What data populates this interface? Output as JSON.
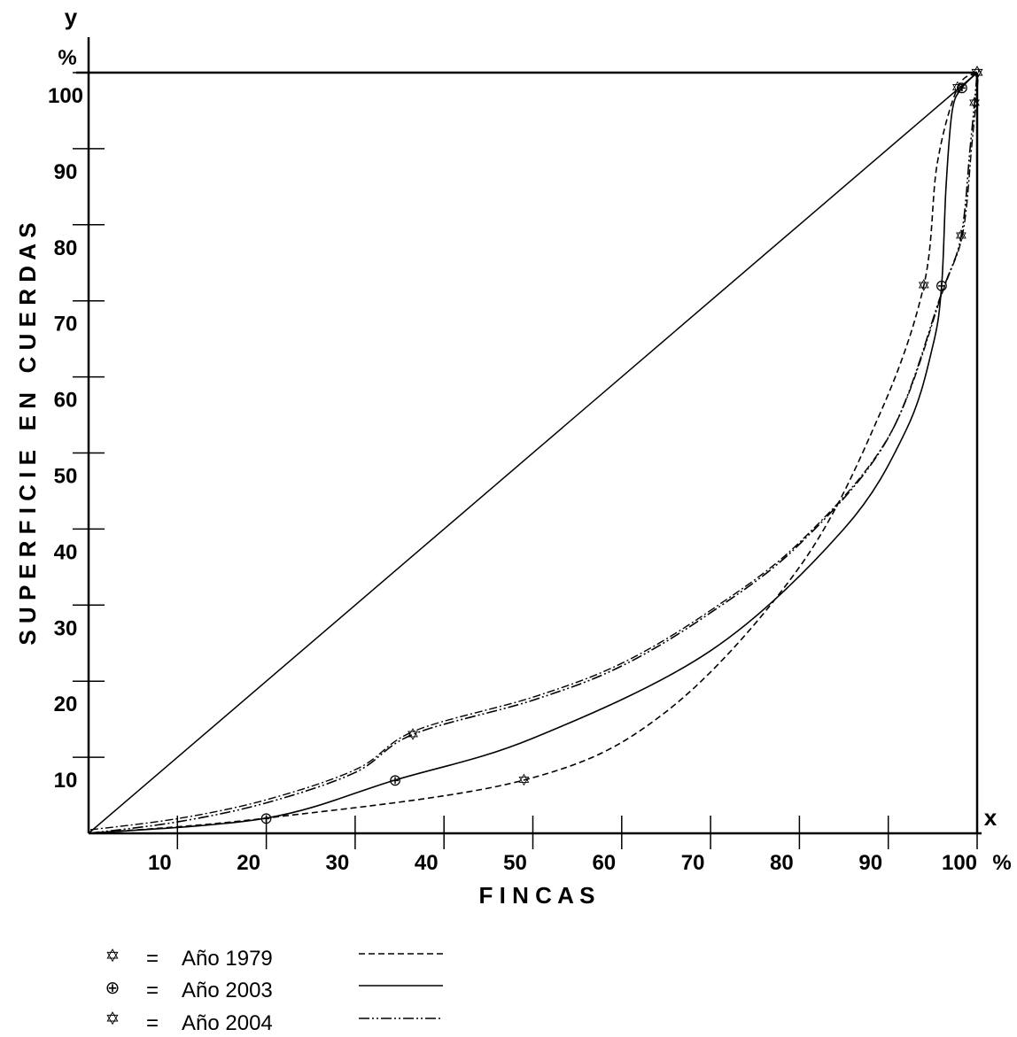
{
  "chart_data": {
    "type": "line",
    "title": "",
    "xlabel": "F I N C A S",
    "ylabel": "S U P E R F I C I E   E N   C U E R D A S",
    "x_axis_letter": "x",
    "y_axis_letter": "y",
    "x_unit": "%",
    "y_unit": "%",
    "xlim": [
      0,
      100
    ],
    "ylim": [
      0,
      100
    ],
    "x_ticks": [
      10,
      20,
      30,
      40,
      50,
      60,
      70,
      80,
      90,
      100
    ],
    "y_ticks": [
      10,
      20,
      30,
      40,
      50,
      60,
      70,
      80,
      90,
      100
    ],
    "grid": false,
    "legend_position": "bottom-left",
    "equality_line": {
      "x": [
        0,
        100
      ],
      "y": [
        0,
        100
      ]
    },
    "series": [
      {
        "name": "Año 1979",
        "marker_label": "✡",
        "line_style": "dashed",
        "x": [
          0,
          20,
          49,
          65,
          80,
          89,
          94,
          95.5,
          97.8,
          100
        ],
        "y": [
          0,
          2,
          7,
          16,
          35,
          55,
          72,
          88,
          98,
          100
        ]
      },
      {
        "name": "Año 2003",
        "marker_label": "⊕",
        "line_style": "solid",
        "x": [
          0,
          20,
          34.5,
          50,
          70,
          85,
          92,
          95,
          96,
          96.5,
          97.2,
          98.3,
          100
        ],
        "y": [
          0,
          2,
          7,
          12.5,
          24,
          40,
          53,
          64,
          72,
          85,
          95,
          98,
          100
        ]
      },
      {
        "name": "Año 2004",
        "marker_label": "✡",
        "line_style": "dash-dot-dot",
        "x": [
          0,
          10,
          20,
          30,
          36.5,
          50,
          60,
          70,
          80,
          90,
          96,
          98.2,
          99.2,
          99.7,
          100
        ],
        "y": [
          0,
          1.5,
          4,
          8,
          13,
          17.5,
          22,
          29,
          38,
          52,
          71,
          78.5,
          90,
          96,
          100
        ]
      }
    ]
  },
  "legend": {
    "items": [
      {
        "symbol": "✡",
        "equals": "=",
        "label": "Año 1979",
        "style": "dashed"
      },
      {
        "symbol": "⊕",
        "equals": "=",
        "label": "Año 2003",
        "style": "solid"
      },
      {
        "symbol": "✡",
        "equals": "=",
        "label": "Año 2004",
        "style": "dash-dot-dot"
      }
    ]
  },
  "colors": {
    "ink": "#000000",
    "background": "#ffffff"
  }
}
